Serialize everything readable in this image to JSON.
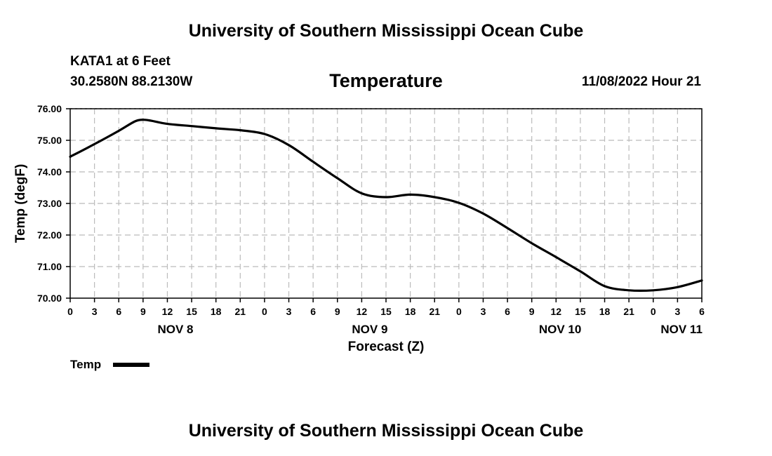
{
  "header": {
    "title": "University of Southern Mississippi Ocean Cube",
    "station": "KATA1 at 6 Feet",
    "coordinates": "30.2580N  88.2130W",
    "variable": "Temperature",
    "datetime": "11/08/2022 Hour 21"
  },
  "footer": {
    "title": "University of Southern Mississippi Ocean Cube"
  },
  "legend": {
    "label": "Temp"
  },
  "chart_data": {
    "type": "line",
    "title": "Temperature",
    "xlabel": "Forecast (Z)",
    "ylabel": "Temp (degF)",
    "x_unit": "hours since NOV 8 00Z",
    "xlim": [
      0,
      78
    ],
    "ylim": [
      70,
      76
    ],
    "grid": true,
    "y_ticks": [
      "70.00",
      "71.00",
      "72.00",
      "73.00",
      "74.00",
      "75.00",
      "76.00"
    ],
    "x_tick_labels": [
      "0",
      "3",
      "6",
      "9",
      "12",
      "15",
      "18",
      "21",
      "0",
      "3",
      "6",
      "9",
      "12",
      "15",
      "18",
      "21",
      "0",
      "3",
      "6",
      "9",
      "12",
      "15",
      "18",
      "21",
      "0",
      "3",
      "6"
    ],
    "day_labels": [
      {
        "label": "NOV 8",
        "x": 13
      },
      {
        "label": "NOV 9",
        "x": 37
      },
      {
        "label": "NOV 10",
        "x": 60.5
      },
      {
        "label": "NOV 11",
        "x": 75.5
      }
    ],
    "series": [
      {
        "name": "Temp",
        "x": [
          0,
          3,
          6,
          8,
          9,
          10,
          12,
          15,
          18,
          21,
          24,
          27,
          30,
          33,
          36,
          39,
          42,
          45,
          48,
          51,
          54,
          57,
          60,
          63,
          66,
          69,
          72,
          75,
          78
        ],
        "values": [
          74.48,
          74.88,
          75.3,
          75.6,
          75.65,
          75.62,
          75.52,
          75.45,
          75.38,
          75.32,
          75.2,
          74.85,
          74.32,
          73.8,
          73.32,
          73.2,
          73.28,
          73.2,
          73.02,
          72.68,
          72.22,
          71.74,
          71.3,
          70.85,
          70.38,
          70.25,
          70.25,
          70.35,
          70.56
        ]
      }
    ]
  }
}
